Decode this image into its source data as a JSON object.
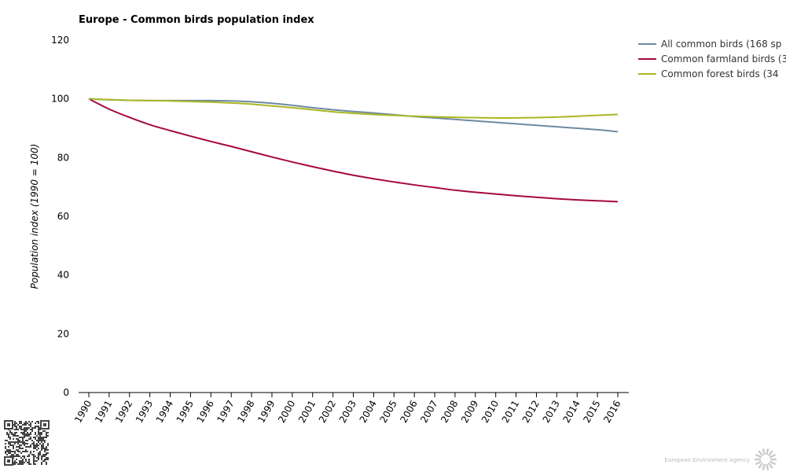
{
  "chart_data": {
    "type": "line",
    "title": "Europe - Common birds population index",
    "xlabel": "",
    "ylabel": "Population index (1990 = 100)",
    "ylim": [
      0,
      120
    ],
    "yticks": [
      "0",
      "20",
      "40",
      "60",
      "80",
      "100",
      "120"
    ],
    "x": [
      "1990",
      "1991",
      "1992",
      "1993",
      "1994",
      "1995",
      "1996",
      "1997",
      "1998",
      "1999",
      "2000",
      "2001",
      "2002",
      "2003",
      "2004",
      "2005",
      "2006",
      "2007",
      "2008",
      "2009",
      "2010",
      "2011",
      "2012",
      "2013",
      "2014",
      "2015",
      "2016"
    ],
    "grid": false,
    "legend_position": "top-right",
    "series": [
      {
        "name": "All common birds (168 sp",
        "color": "#6d8aa3",
        "values": [
          100,
          99.7,
          99.5,
          99.4,
          99.4,
          99.4,
          99.4,
          99.3,
          99.0,
          98.5,
          97.8,
          97.0,
          96.3,
          95.7,
          95.2,
          94.6,
          94.0,
          93.5,
          93.0,
          92.5,
          92.0,
          91.5,
          91.0,
          90.5,
          90.0,
          89.5,
          88.8
        ]
      },
      {
        "name": "Common farmland birds (3",
        "color": "#a6093d",
        "values": [
          100,
          96.5,
          93.7,
          91.2,
          89.2,
          87.3,
          85.5,
          83.8,
          82.0,
          80.2,
          78.5,
          76.9,
          75.4,
          74.0,
          72.8,
          71.7,
          70.7,
          69.8,
          68.9,
          68.2,
          67.6,
          67.0,
          66.5,
          66.0,
          65.6,
          65.3,
          65.0
        ]
      },
      {
        "name": "Common forest birds (34",
        "color": "#aab720",
        "values": [
          100,
          99.7,
          99.5,
          99.4,
          99.3,
          99.1,
          98.9,
          98.6,
          98.2,
          97.6,
          97.0,
          96.3,
          95.6,
          95.1,
          94.7,
          94.4,
          94.1,
          93.9,
          93.7,
          93.6,
          93.5,
          93.5,
          93.6,
          93.8,
          94.1,
          94.4,
          94.7
        ]
      }
    ]
  },
  "footer": {
    "agency": "European Environment Agency"
  }
}
